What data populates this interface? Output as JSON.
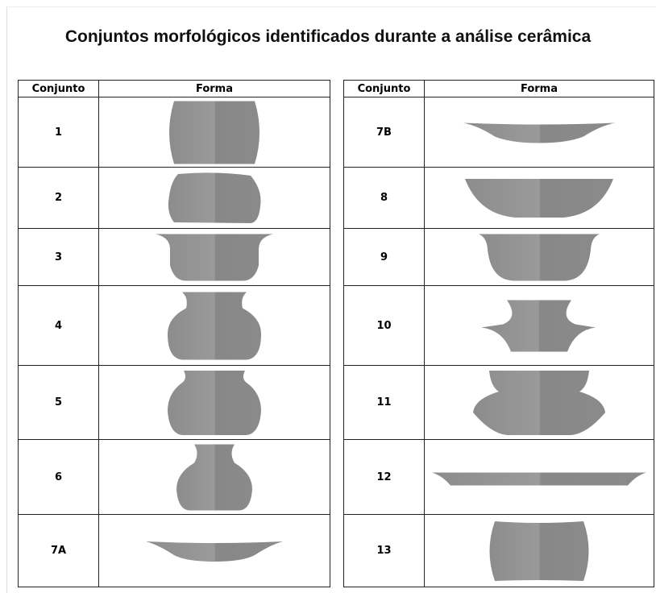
{
  "title": "Conjuntos morfológicos identificados durante a análise cerâmica",
  "tables": [
    {
      "header": [
        "Conjunto",
        "Forma"
      ],
      "rows": [
        "1",
        "2",
        "3",
        "4",
        "5",
        "6",
        "7A"
      ]
    },
    {
      "header": [
        "Conjunto",
        "Forma"
      ],
      "rows": [
        "7B",
        "8",
        "9",
        "10",
        "11",
        "12",
        "13"
      ]
    }
  ]
}
